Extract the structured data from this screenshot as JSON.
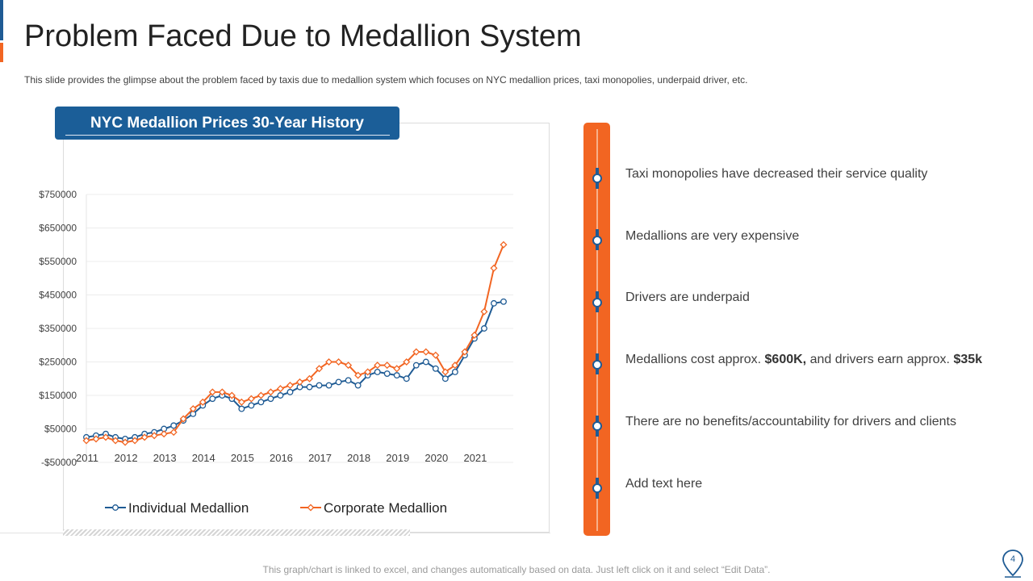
{
  "slide": {
    "title": "Problem Faced Due to Medallion System",
    "subtitle": "This slide provides  the glimpse about the problem faced by taxis due to medallion  system which focuses on NYC medallion prices, taxi monopolies, underpaid driver,  etc.",
    "footer": "This graph/chart is linked to excel, and changes automatically based on data. Just left click on it and select “Edit Data”.",
    "page_number": "4"
  },
  "colors": {
    "blue": "#1f5b94",
    "orange": "#f26522",
    "title_box": "#1b5e98"
  },
  "timeline": {
    "points": [
      {
        "text": "Taxi monopolies have decreased their service quality"
      },
      {
        "text": "Medallions are very expensive"
      },
      {
        "text": "Drivers are underpaid"
      },
      {
        "pre": "Medallions cost approx. ",
        "b1": "$600K,",
        "mid": " and drivers earn approx. ",
        "b2": "$35k"
      },
      {
        "text": "There are no benefits/accountability for drivers and clients"
      },
      {
        "text": "Add text here"
      }
    ]
  },
  "chart_data": {
    "type": "line",
    "title": "NYC Medallion Prices 30-Year History",
    "xlabel": "",
    "ylabel": "",
    "ylim": [
      -50000,
      750000
    ],
    "y_ticks": [
      "$750000",
      "$650000",
      "$550000",
      "$450000",
      "$350000",
      "$250000",
      "$150000",
      "$50000",
      "-$50000"
    ],
    "y_tick_values": [
      750000,
      650000,
      550000,
      450000,
      350000,
      250000,
      150000,
      50000,
      -50000
    ],
    "x_ticks": [
      "2011",
      "2012",
      "2013",
      "2014",
      "2015",
      "2016",
      "2017",
      "2018",
      "2019",
      "2020",
      "2021"
    ],
    "x_tick_values": [
      2011,
      2012,
      2013,
      2014,
      2015,
      2016,
      2017,
      2018,
      2019,
      2020,
      2021
    ],
    "legend_position": "bottom",
    "x": [
      2011.0,
      2011.25,
      2011.5,
      2011.75,
      2012.0,
      2012.25,
      2012.5,
      2012.75,
      2013.0,
      2013.25,
      2013.5,
      2013.75,
      2014.0,
      2014.25,
      2014.5,
      2014.75,
      2015.0,
      2015.25,
      2015.5,
      2015.75,
      2016.0,
      2016.25,
      2016.5,
      2016.75,
      2017.0,
      2017.25,
      2017.5,
      2017.75,
      2018.0,
      2018.25,
      2018.5,
      2018.75,
      2019.0,
      2019.25,
      2019.5,
      2019.75,
      2020.0,
      2020.25,
      2020.5,
      2020.75,
      2021.0,
      2021.25,
      2021.5,
      2021.75
    ],
    "series": [
      {
        "name": "Individual Medallion",
        "color": "#1f5b94",
        "marker": "circle",
        "values": [
          25000,
          30000,
          35000,
          25000,
          20000,
          25000,
          35000,
          40000,
          50000,
          60000,
          75000,
          95000,
          120000,
          140000,
          150000,
          140000,
          110000,
          120000,
          130000,
          140000,
          150000,
          160000,
          175000,
          175000,
          180000,
          180000,
          190000,
          195000,
          180000,
          210000,
          220000,
          215000,
          210000,
          200000,
          240000,
          250000,
          230000,
          200000,
          220000,
          270000,
          320000,
          350000,
          425000,
          430000
        ]
      },
      {
        "name": "Corporate Medallion",
        "color": "#f26522",
        "marker": "diamond",
        "values": [
          15000,
          20000,
          25000,
          15000,
          10000,
          15000,
          25000,
          30000,
          35000,
          40000,
          80000,
          110000,
          130000,
          160000,
          160000,
          150000,
          130000,
          140000,
          150000,
          160000,
          170000,
          180000,
          190000,
          200000,
          230000,
          250000,
          250000,
          240000,
          210000,
          220000,
          240000,
          240000,
          230000,
          250000,
          280000,
          280000,
          270000,
          220000,
          240000,
          280000,
          330000,
          400000,
          530000,
          600000
        ]
      }
    ]
  }
}
